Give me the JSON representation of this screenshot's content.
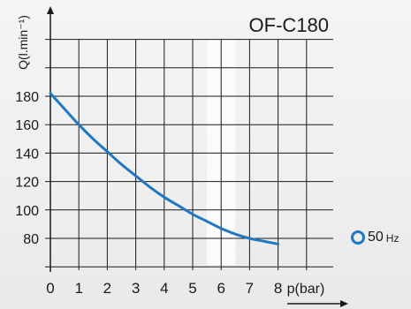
{
  "chart_data": {
    "type": "line",
    "title": "OF-C180",
    "xlabel": "p(bar)",
    "ylabel": "Q(l.min⁻¹)",
    "xlim": [
      0,
      9.5
    ],
    "ylim": [
      60,
      240
    ],
    "x_ticks": [
      0,
      1,
      2,
      3,
      4,
      5,
      6,
      7,
      8
    ],
    "y_ticks": [
      80,
      100,
      120,
      140,
      160,
      180
    ],
    "grid": true,
    "shaded_band": [
      5.5,
      6.5
    ],
    "series": [
      {
        "name": "50Hz",
        "color": "#1f78c1",
        "x": [
          0,
          0.5,
          1,
          1.5,
          2,
          2.5,
          3,
          3.5,
          4,
          4.5,
          5,
          5.5,
          6,
          6.5,
          7,
          7.5,
          8
        ],
        "y": [
          182,
          171,
          160,
          150,
          141,
          132,
          124,
          116,
          109,
          103,
          97,
          92,
          87,
          83,
          80,
          78,
          76
        ]
      }
    ]
  },
  "legend": {
    "value": "50",
    "unit": "Hz"
  }
}
